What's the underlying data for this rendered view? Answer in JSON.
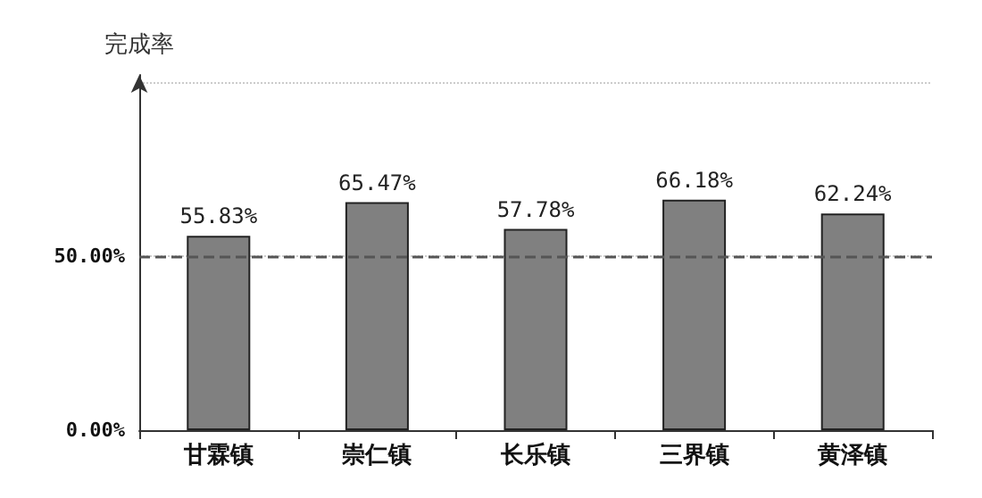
{
  "chart_data": {
    "type": "bar",
    "ylabel": "完成率",
    "categories": [
      "甘霖镇",
      "崇仁镇",
      "长乐镇",
      "三界镇",
      "黄泽镇"
    ],
    "values": [
      55.83,
      65.47,
      57.78,
      66.18,
      62.24
    ],
    "value_labels": [
      "55.83%",
      "65.47%",
      "57.78%",
      "66.18%",
      "62.24%"
    ],
    "color": "#808080",
    "ylim": [
      0,
      102
    ],
    "yticks": [
      {
        "value": 0,
        "label": "0.00%"
      },
      {
        "value": 50,
        "label": "50.00%"
      },
      {
        "value": 100,
        "label": null
      }
    ],
    "grid": "y",
    "ref_lines": [
      {
        "axis": "y",
        "value": 50,
        "label": null,
        "color": "#555555",
        "line_style": "dashed"
      }
    ]
  }
}
